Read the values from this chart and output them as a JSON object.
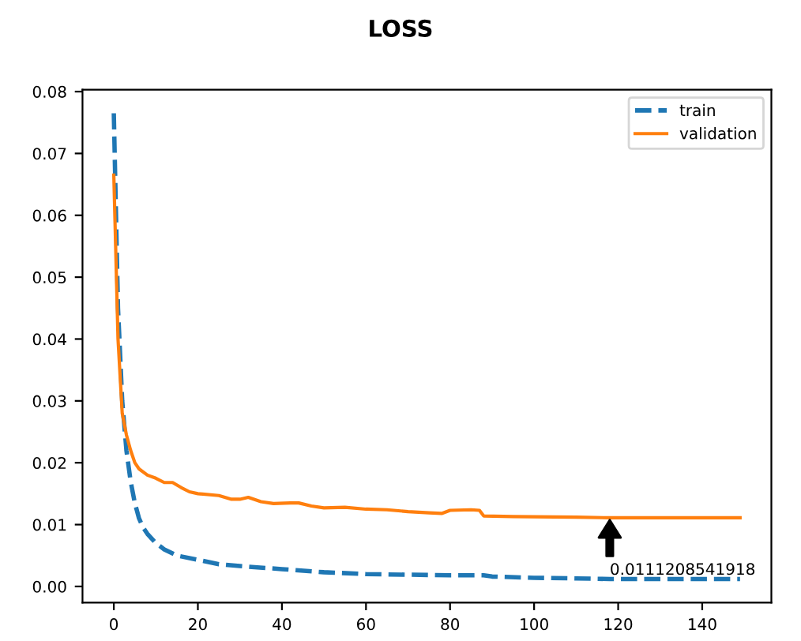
{
  "chart_data": {
    "type": "line",
    "title": "LOSS",
    "xlim": [
      -7.45,
      156.45
    ],
    "xticks": [
      0,
      20,
      40,
      60,
      80,
      100,
      120,
      140
    ],
    "ylim": [
      -0.0026,
      0.0803
    ],
    "yticks": [
      {
        "value": 0,
        "label": "0.00"
      },
      {
        "value": 0.01,
        "label": "0.01"
      },
      {
        "value": 0.02,
        "label": "0.02"
      },
      {
        "value": 0.03,
        "label": "0.03"
      },
      {
        "value": 0.04,
        "label": "0.04"
      },
      {
        "value": 0.05,
        "label": "0.05"
      },
      {
        "value": 0.06,
        "label": "0.06"
      },
      {
        "value": 0.07,
        "label": "0.07"
      },
      {
        "value": 0.08,
        "label": "0.08"
      }
    ],
    "legend": "top right",
    "grid": false,
    "series": [
      {
        "name": "train",
        "color": "#1f77b4",
        "line_style": "dashed",
        "x": [
          0,
          1,
          2,
          3,
          4,
          5,
          6,
          7,
          8,
          10,
          12,
          15,
          20,
          25,
          30,
          40,
          50,
          60,
          70,
          80,
          88,
          90,
          100,
          110,
          118,
          130,
          149
        ],
        "values": [
          0.0765,
          0.045,
          0.03,
          0.022,
          0.017,
          0.0135,
          0.011,
          0.0095,
          0.0085,
          0.007,
          0.006,
          0.005,
          0.0043,
          0.0036,
          0.0033,
          0.0028,
          0.0023,
          0.002,
          0.0019,
          0.0018,
          0.0018,
          0.0016,
          0.0014,
          0.0013,
          0.0012,
          0.0012,
          0.0012
        ]
      },
      {
        "name": "validation",
        "color": "#ff7f0e",
        "line_style": "solid",
        "x": [
          0,
          1,
          2,
          3,
          4,
          5,
          6,
          8,
          10,
          12,
          14,
          16,
          18,
          20,
          25,
          28,
          30,
          32,
          35,
          38,
          42,
          44,
          47,
          50,
          55,
          60,
          65,
          70,
          75,
          78,
          80,
          85,
          87,
          88,
          95,
          110,
          118,
          149
        ],
        "values": [
          0.0665,
          0.04,
          0.028,
          0.0245,
          0.022,
          0.02,
          0.019,
          0.018,
          0.0175,
          0.0168,
          0.0168,
          0.016,
          0.0153,
          0.015,
          0.0147,
          0.0141,
          0.0141,
          0.0144,
          0.0137,
          0.0134,
          0.0135,
          0.0135,
          0.013,
          0.0127,
          0.0128,
          0.0125,
          0.0124,
          0.0121,
          0.0119,
          0.0118,
          0.0123,
          0.0124,
          0.0123,
          0.0114,
          0.0113,
          0.0112,
          0.0111,
          0.0111
        ]
      }
    ],
    "annotations": [
      {
        "text": "0.0111208541918",
        "x": 118,
        "y": 0.0111
      }
    ]
  }
}
